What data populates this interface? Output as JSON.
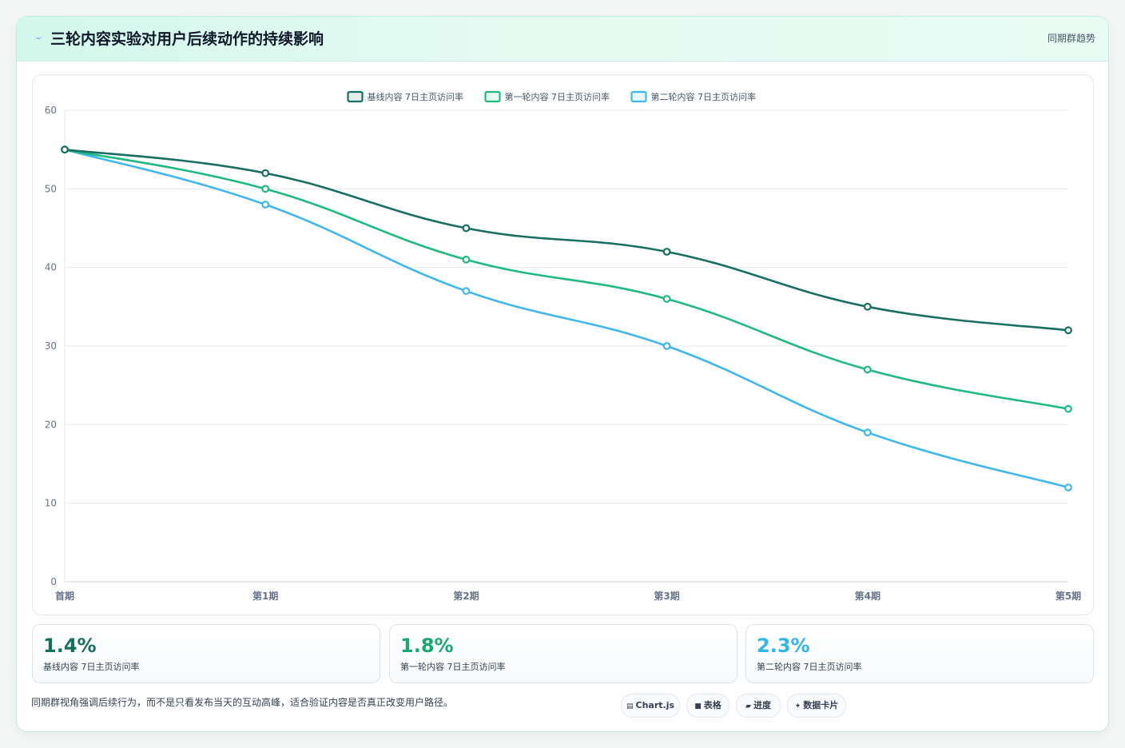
{
  "header": {
    "title": "三轮内容实验对用户后续动作的持续影响",
    "icon": "lightning-icon",
    "tag": "同期群趋势"
  },
  "chart_data": {
    "type": "line",
    "categories": [
      "首期",
      "第1期",
      "第2期",
      "第3期",
      "第4期",
      "第5期"
    ],
    "ylim": [
      0,
      60
    ],
    "yticks": [
      0,
      10,
      20,
      30,
      40,
      50,
      60
    ],
    "grid": true,
    "legend_position": "top",
    "series": [
      {
        "name": "基线内容 7日主页访问率",
        "color": "#166f62",
        "values": [
          55,
          52,
          45,
          42,
          35,
          32
        ]
      },
      {
        "name": "第一轮内容 7日主页访问率",
        "color": "#1fba80",
        "values": [
          55,
          50,
          41,
          36,
          27,
          22
        ]
      },
      {
        "name": "第二轮内容 7日主页访问率",
        "color": "#3eb7ef",
        "values": [
          55,
          48,
          37,
          30,
          19,
          12
        ]
      }
    ]
  },
  "stats": [
    {
      "value": "1.4%",
      "label": "基线内容 7日主页访问率",
      "color": "#15705f"
    },
    {
      "value": "1.8%",
      "label": "第一轮内容 7日主页访问率",
      "color": "#18a872"
    },
    {
      "value": "2.3%",
      "label": "第二轮内容 7日主页访问率",
      "color": "#2fb5e8"
    }
  ],
  "footnote": "同期群视角强调后续行为，而不是只看发布当天的互动高峰，适合验证内容是否真正改变用户路径。",
  "tags": [
    {
      "label": "Chart.js",
      "icon": "chart-icon",
      "glyph": "▤"
    },
    {
      "label": "表格",
      "icon": "table-icon",
      "glyph": "■"
    },
    {
      "label": "进度",
      "icon": "progress-icon",
      "glyph": "▰"
    },
    {
      "label": "数据卡片",
      "icon": "card-icon",
      "glyph": "✦"
    }
  ]
}
